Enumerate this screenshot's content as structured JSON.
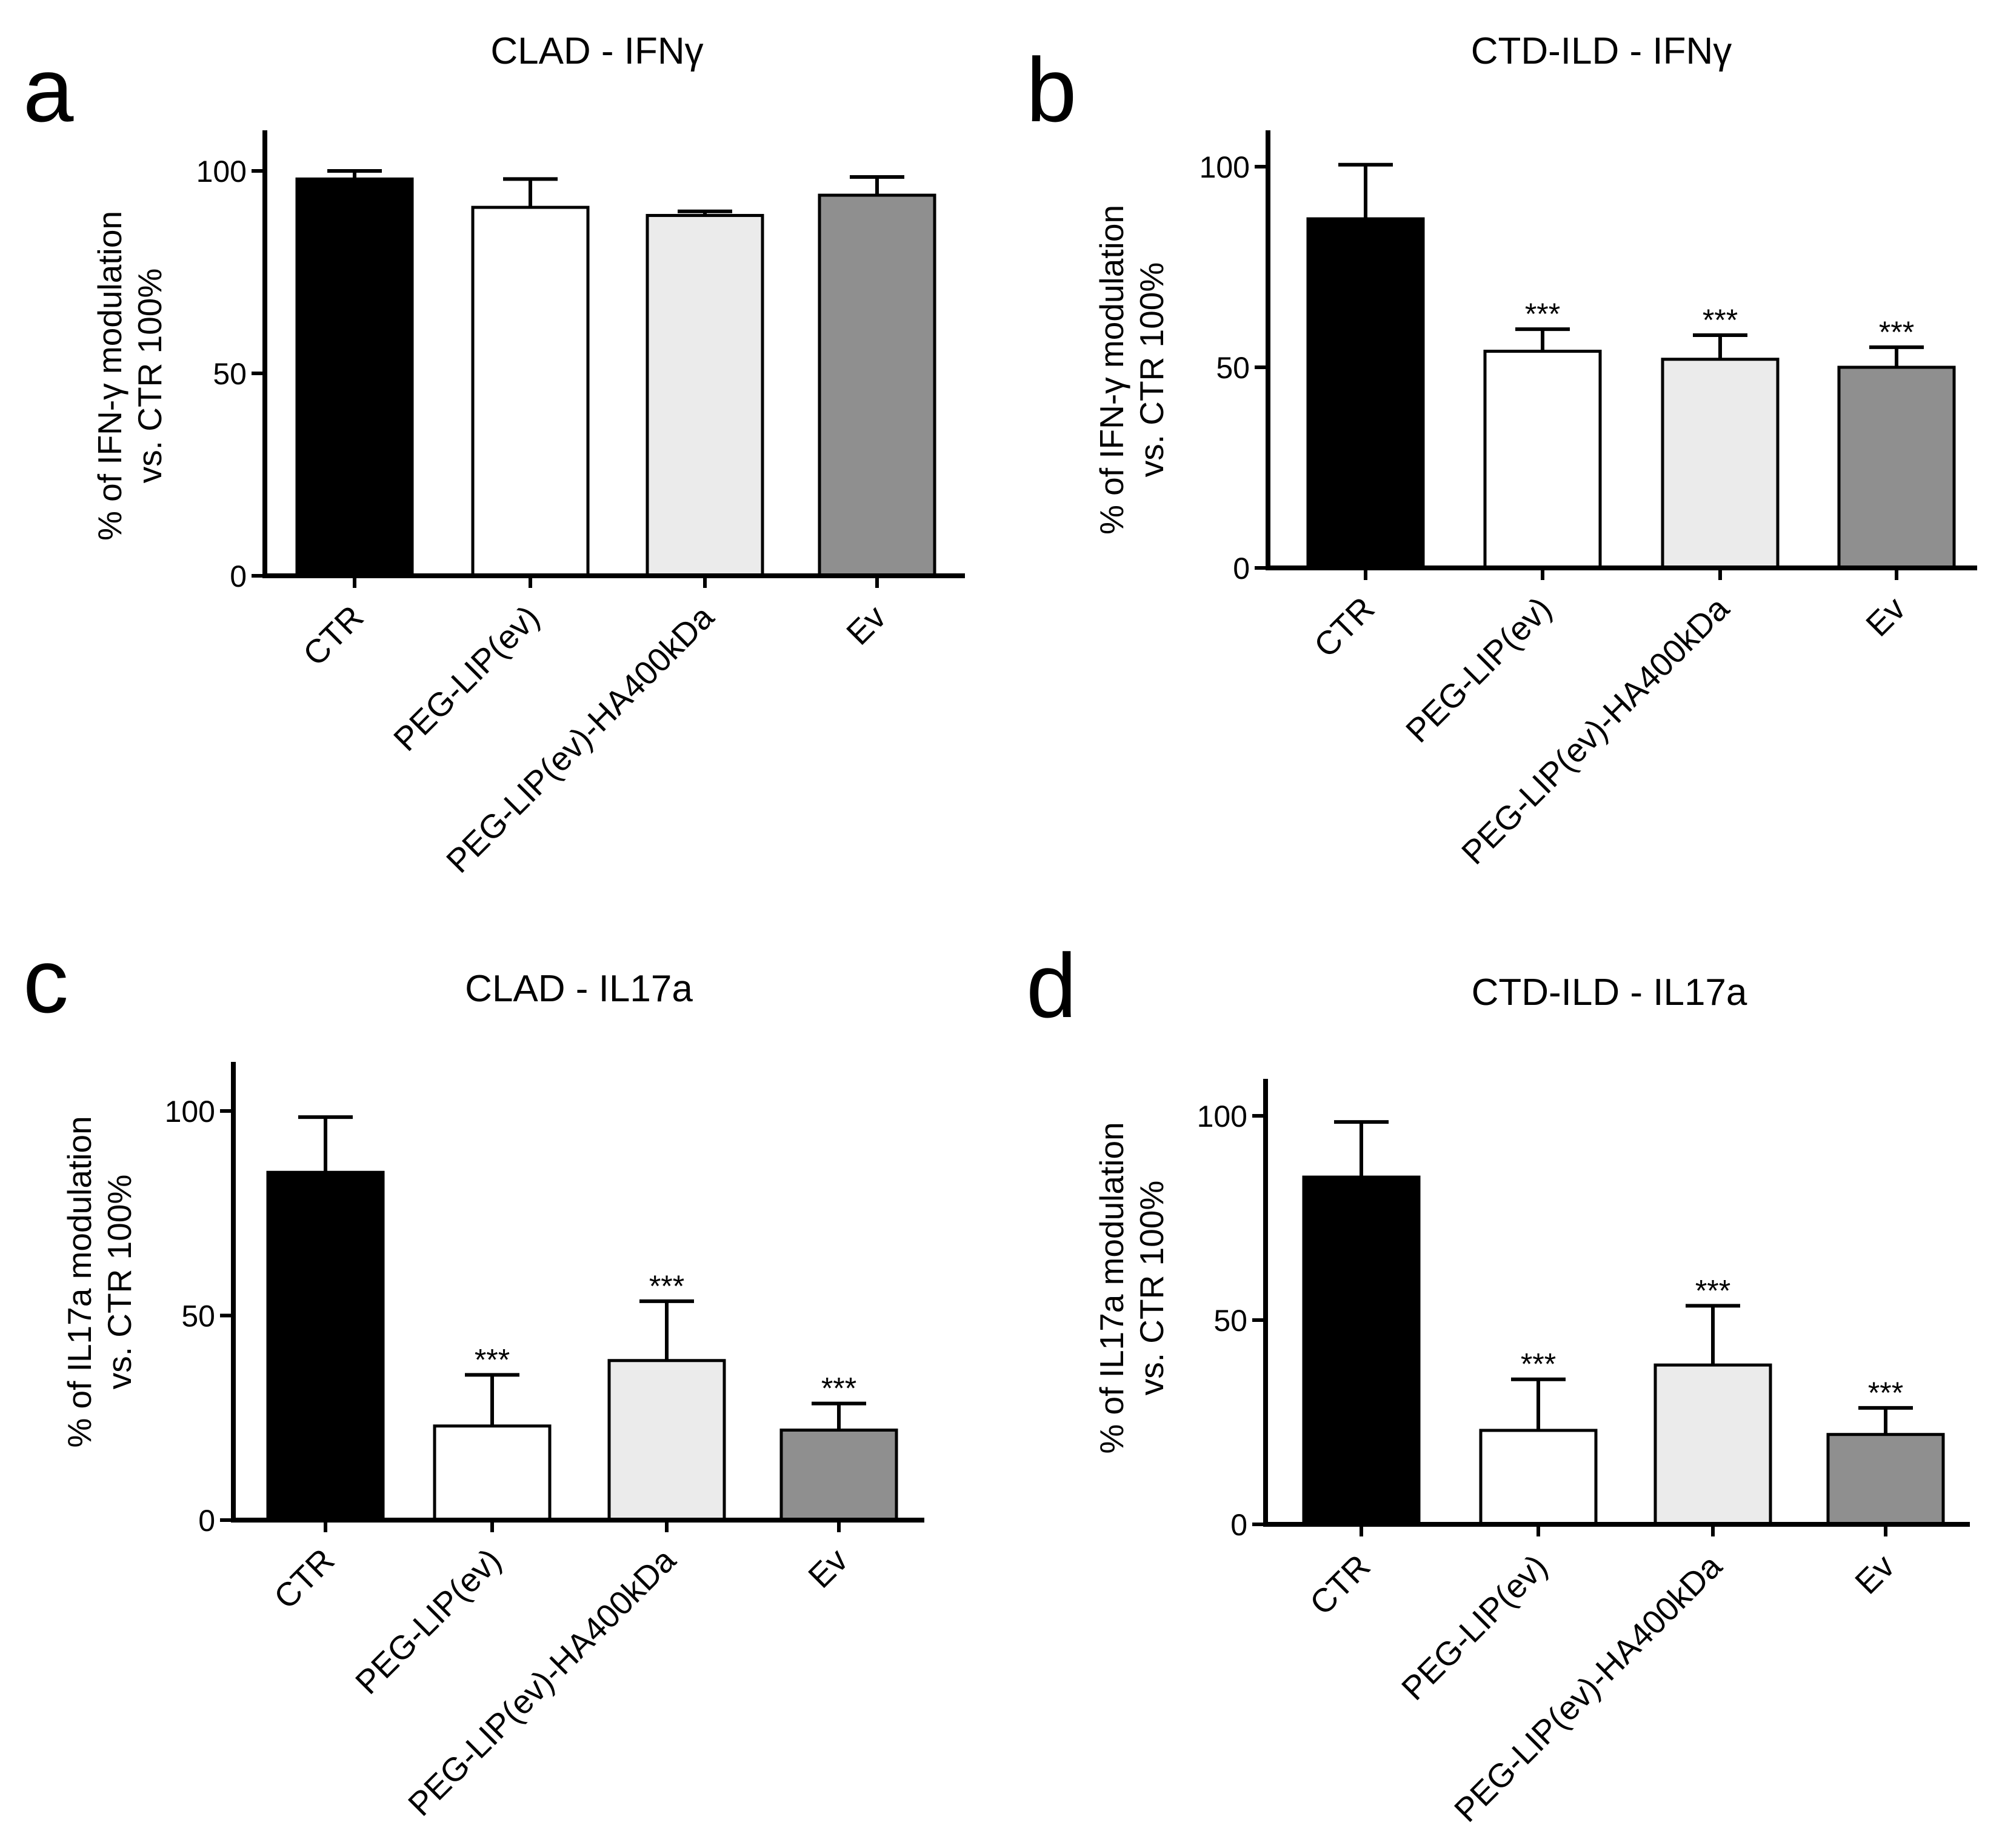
{
  "figure": {
    "colors": {
      "CTR": "#000000",
      "PEG-LIP(ev)": "#ffffff",
      "PEG-LIP(ev)-HA400kDa": "#ebebeb",
      "Ev": "#8f8f8f",
      "axis": "#000000"
    }
  },
  "chart_data": [
    {
      "id": "a",
      "panel_letter": "a",
      "type": "bar",
      "title": "CLAD - IFNγ",
      "ylabel_line1": "% of IFN-γ modulation",
      "ylabel_line2": "vs. CTR 100%",
      "xlabel": "",
      "ylim": [
        0,
        110
      ],
      "yticks": [
        0,
        50,
        100
      ],
      "grid": false,
      "categories": [
        "CTR",
        "PEG-LIP(ev)",
        "PEG-LIP(ev)-HA400kDa",
        "Ev"
      ],
      "values": [
        98,
        91,
        89,
        94
      ],
      "errors": [
        2,
        7,
        1,
        4.5
      ],
      "significance": [
        "",
        "",
        "",
        ""
      ]
    },
    {
      "id": "b",
      "panel_letter": "b",
      "type": "bar",
      "title": "CTD-ILD  - IFNγ",
      "ylabel_line1": "% of IFN-γ modulation",
      "ylabel_line2": "vs. CTR 100%",
      "xlabel": "",
      "ylim": [
        0,
        110
      ],
      "yticks": [
        0,
        50,
        100
      ],
      "grid": false,
      "categories": [
        "CTR",
        "PEG-LIP(ev)",
        "PEG-LIP(ev)-HA400kDa",
        "Ev"
      ],
      "values": [
        87,
        54,
        52,
        50
      ],
      "errors": [
        13.5,
        5.5,
        6,
        5
      ],
      "significance": [
        "",
        "***",
        "***",
        "***"
      ]
    },
    {
      "id": "c",
      "panel_letter": "c",
      "type": "bar",
      "title": "CLAD - IL17a",
      "ylabel_line1": "% of IL17a modulation",
      "ylabel_line2": "vs. CTR 100%",
      "xlabel": "",
      "ylim": [
        0,
        110
      ],
      "yticks": [
        0,
        50,
        100
      ],
      "grid": false,
      "categories": [
        "CTR",
        "PEG-LIP(ev)",
        "PEG-LIP(ev)-HA400kDa",
        "Ev"
      ],
      "values": [
        85,
        23,
        39,
        22
      ],
      "errors": [
        13.5,
        12.5,
        14.5,
        6.5
      ],
      "significance": [
        "",
        "***",
        "***",
        "***"
      ]
    },
    {
      "id": "d",
      "panel_letter": "d",
      "type": "bar",
      "title": "CTD-ILD - IL17a",
      "ylabel_line1": "% of IL17a modulation",
      "ylabel_line2": "vs. CTR 100%",
      "xlabel": "",
      "ylim": [
        0,
        110
      ],
      "yticks": [
        0,
        50,
        100
      ],
      "grid": false,
      "categories": [
        "CTR",
        "PEG-LIP(ev)",
        "PEG-LIP(ev)-HA400kDa",
        "Ev"
      ],
      "values": [
        85,
        23,
        39,
        22
      ],
      "errors": [
        13.5,
        12.5,
        14.5,
        6.5
      ],
      "significance": [
        "",
        "***",
        "***",
        "***"
      ]
    }
  ]
}
